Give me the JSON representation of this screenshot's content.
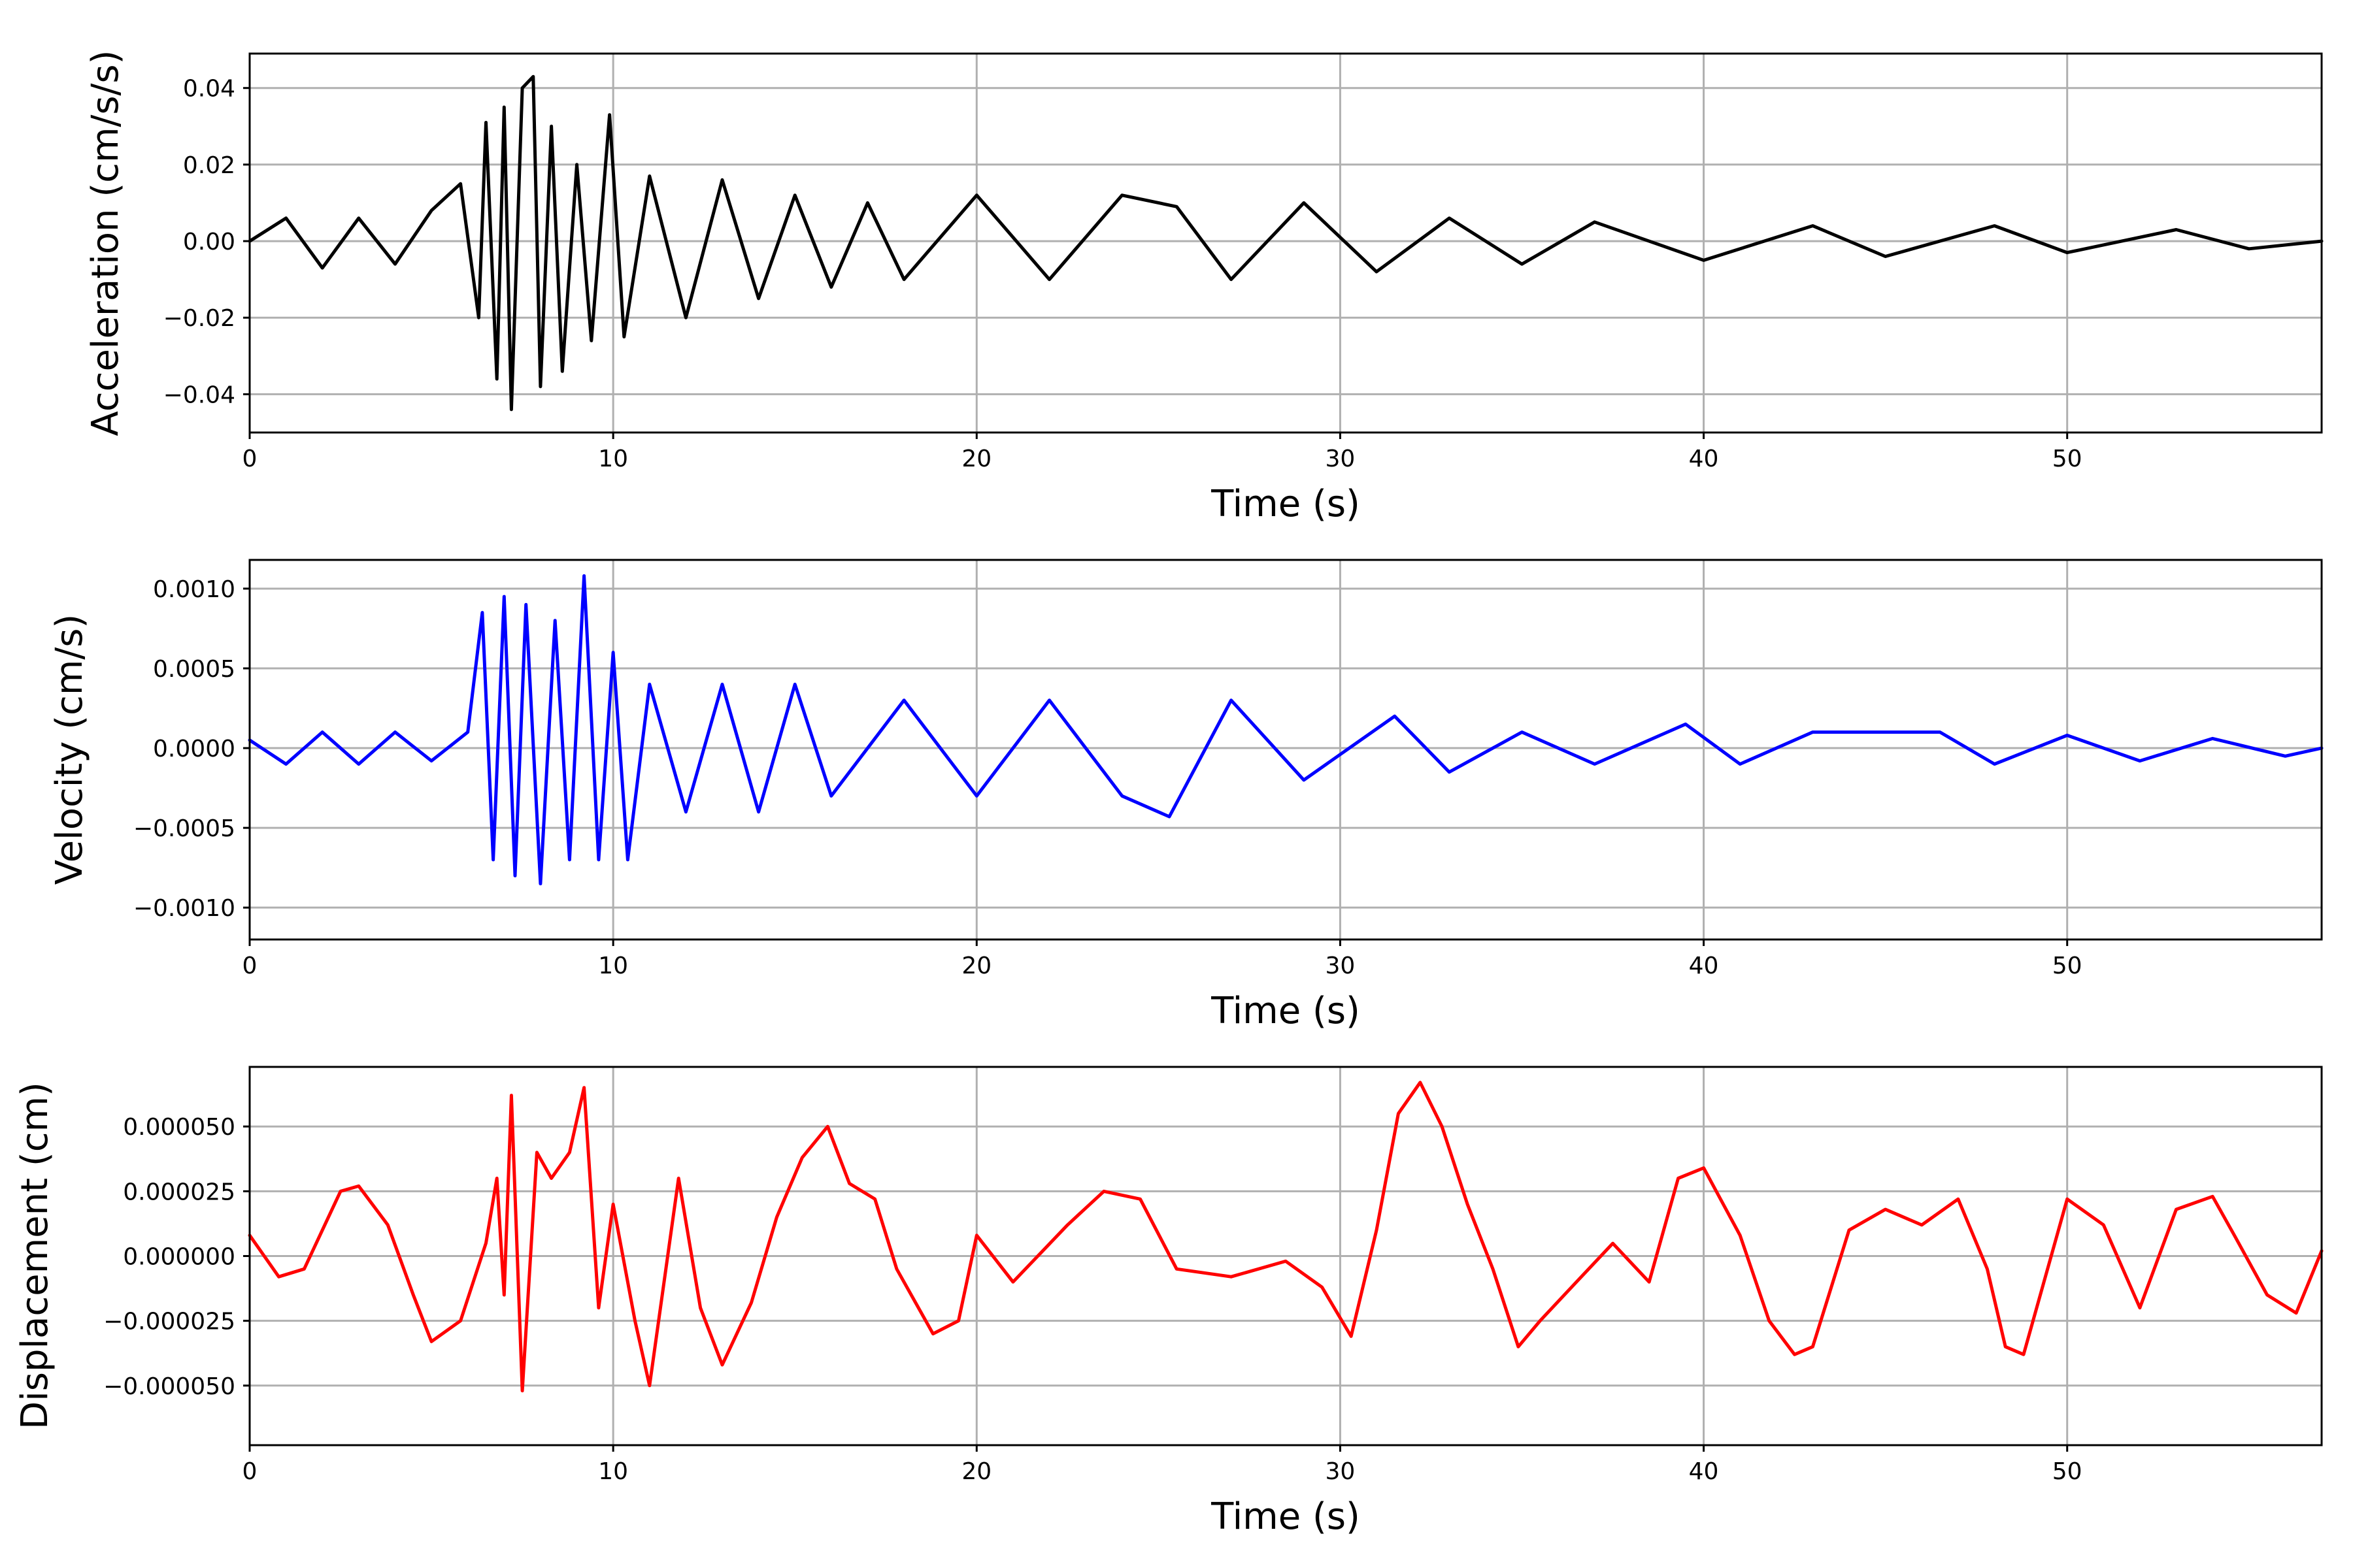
{
  "chart_data": [
    {
      "type": "line",
      "xlabel": "Time (s)",
      "ylabel": "Acceleration (cm/s/s)",
      "xlim": [
        0,
        57
      ],
      "ylim": [
        -0.05,
        0.049
      ],
      "xticks": [
        0,
        10,
        20,
        30,
        40,
        50
      ],
      "xtick_labels": [
        "0",
        "10",
        "20",
        "30",
        "40",
        "50"
      ],
      "yticks": [
        -0.04,
        -0.02,
        0.0,
        0.02,
        0.04
      ],
      "ytick_labels": [
        "−0.04",
        "−0.02",
        "0.00",
        "0.02",
        "0.04"
      ],
      "grid": true,
      "color": "#000000",
      "series": [
        {
          "x": [
            0,
            1,
            2,
            3,
            4,
            5,
            5.8,
            6.3,
            6.5,
            6.8,
            7.0,
            7.2,
            7.5,
            7.8,
            8.0,
            8.3,
            8.6,
            9.0,
            9.4,
            9.9,
            10.3,
            11,
            12,
            13,
            14,
            15,
            16,
            17,
            18,
            20,
            22,
            24,
            25.5,
            27,
            29,
            31,
            33,
            35,
            37,
            40,
            43,
            45,
            48,
            50,
            53,
            55,
            57
          ],
          "y": [
            0,
            0.006,
            -0.007,
            0.006,
            -0.006,
            0.008,
            0.015,
            -0.02,
            0.031,
            -0.036,
            0.035,
            -0.044,
            0.04,
            0.043,
            -0.038,
            0.03,
            -0.034,
            0.02,
            -0.026,
            0.033,
            -0.025,
            0.017,
            -0.02,
            0.016,
            -0.015,
            0.012,
            -0.012,
            0.01,
            -0.01,
            0.012,
            -0.01,
            0.012,
            0.009,
            -0.01,
            0.01,
            -0.008,
            0.006,
            -0.006,
            0.005,
            -0.005,
            0.004,
            -0.004,
            0.004,
            -0.003,
            0.003,
            -0.002,
            0
          ]
        }
      ]
    },
    {
      "type": "line",
      "xlabel": "Time (s)",
      "ylabel": "Velocity (cm/s)",
      "xlim": [
        0,
        57
      ],
      "ylim": [
        -0.0012,
        0.00118
      ],
      "xticks": [
        0,
        10,
        20,
        30,
        40,
        50
      ],
      "xtick_labels": [
        "0",
        "10",
        "20",
        "30",
        "40",
        "50"
      ],
      "yticks": [
        -0.001,
        -0.0005,
        0.0,
        0.0005,
        0.001
      ],
      "ytick_labels": [
        "−0.0010",
        "−0.0005",
        "0.0000",
        "0.0005",
        "0.0010"
      ],
      "grid": true,
      "color": "#0000ff",
      "series": [
        {
          "x": [
            0,
            1,
            2,
            3,
            4,
            5,
            6,
            6.4,
            6.7,
            7.0,
            7.3,
            7.6,
            8.0,
            8.4,
            8.8,
            9.2,
            9.6,
            10.0,
            10.4,
            11,
            12,
            13,
            14,
            15,
            16,
            18,
            20,
            22,
            24,
            25.3,
            27,
            29,
            31.5,
            33,
            35,
            37,
            39.5,
            41,
            43,
            46.5,
            48,
            50,
            52,
            54,
            56,
            57
          ],
          "y": [
            5e-05,
            -0.0001,
            0.0001,
            -0.0001,
            0.0001,
            -8e-05,
            0.0001,
            0.00085,
            -0.0007,
            0.00095,
            -0.0008,
            0.0009,
            -0.00085,
            0.0008,
            -0.0007,
            0.00108,
            -0.0007,
            0.0006,
            -0.0007,
            0.0004,
            -0.0004,
            0.0004,
            -0.0004,
            0.0004,
            -0.0003,
            0.0003,
            -0.0003,
            0.0003,
            -0.0003,
            -0.00043,
            0.0003,
            -0.0002,
            0.0002,
            -0.00015,
            0.0001,
            -0.0001,
            0.00015,
            -0.0001,
            0.0001,
            0.0001,
            -0.0001,
            8e-05,
            -8e-05,
            6e-05,
            -5e-05,
            0
          ]
        }
      ]
    },
    {
      "type": "line",
      "xlabel": "Time (s)",
      "ylabel": "Displacement (cm)",
      "xlim": [
        0,
        57
      ],
      "ylim": [
        -7.3e-05,
        7.3e-05
      ],
      "xticks": [
        0,
        10,
        20,
        30,
        40,
        50
      ],
      "xtick_labels": [
        "0",
        "10",
        "20",
        "30",
        "40",
        "50"
      ],
      "yticks": [
        -5e-05,
        -2.5e-05,
        0.0,
        2.5e-05,
        5e-05
      ],
      "ytick_labels": [
        "−0.000050",
        "−0.000025",
        "0.000000",
        "0.000025",
        "0.000050"
      ],
      "grid": true,
      "color": "#ff0000",
      "series": [
        {
          "x": [
            0,
            0.8,
            1.5,
            2.5,
            3.0,
            3.8,
            4.5,
            5.0,
            5.8,
            6.5,
            6.8,
            7.0,
            7.2,
            7.5,
            7.9,
            8.3,
            8.8,
            9.2,
            9.6,
            10.0,
            10.6,
            11.0,
            11.8,
            12.4,
            13.0,
            13.8,
            14.5,
            15.2,
            15.9,
            16.5,
            17.2,
            17.8,
            18.8,
            19.5,
            20.0,
            21.0,
            22.5,
            23.5,
            24.5,
            25.5,
            27.0,
            28.5,
            29.5,
            30.3,
            31.0,
            31.6,
            32.2,
            32.8,
            33.5,
            34.2,
            34.9,
            35.5,
            36.5,
            37.5,
            38.5,
            39.3,
            40.0,
            41.0,
            41.8,
            42.5,
            43.0,
            44.0,
            45.0,
            46.0,
            47.0,
            47.8,
            48.3,
            48.8,
            50.0,
            51.0,
            52.0,
            53.0,
            54.0,
            54.6,
            55.5,
            56.3,
            57.0
          ],
          "y": [
            8e-06,
            -8e-06,
            -5e-06,
            2.5e-05,
            2.7e-05,
            1.2e-05,
            -1.5e-05,
            -3.3e-05,
            -2.5e-05,
            5e-06,
            3e-05,
            -1.5e-05,
            6.2e-05,
            -5.2e-05,
            4e-05,
            3e-05,
            4e-05,
            6.5e-05,
            -2e-05,
            2e-05,
            -2.5e-05,
            -5e-05,
            3e-05,
            -2e-05,
            -4.2e-05,
            -1.8e-05,
            1.5e-05,
            3.8e-05,
            5e-05,
            2.8e-05,
            2.2e-05,
            -5e-06,
            -3e-05,
            -2.5e-05,
            8e-06,
            -1e-05,
            1.2e-05,
            2.5e-05,
            2.2e-05,
            -5e-06,
            -8e-06,
            -2e-06,
            -1.2e-05,
            -3.1e-05,
            1e-05,
            5.5e-05,
            6.7e-05,
            5e-05,
            2e-05,
            -5e-06,
            -3.5e-05,
            -2.5e-05,
            -1e-05,
            4.9e-06,
            -1e-05,
            3e-05,
            3.4e-05,
            8e-06,
            -2.5e-05,
            -3.8e-05,
            -3.5e-05,
            1e-05,
            1.8e-05,
            1.2e-05,
            2.2e-05,
            -5e-06,
            -3.5e-05,
            -3.8e-05,
            2.2e-05,
            1.2e-05,
            -2e-05,
            1.8e-05,
            2.3e-05,
            8e-06,
            -1.5e-05,
            -2.2e-05,
            2e-06
          ]
        }
      ]
    }
  ]
}
